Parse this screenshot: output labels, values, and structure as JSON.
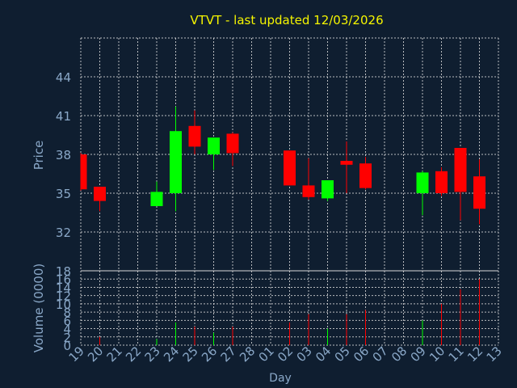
{
  "chart_data": [
    {
      "type": "candlestick",
      "title": "VTVT - last updated 12/03/2026",
      "xlabel": "",
      "ylabel": "Price",
      "ylim": [
        29,
        47
      ],
      "yticks": [
        "32",
        "35",
        "38",
        "41",
        "44"
      ],
      "colors": {
        "up": "#00ff00",
        "down": "#ff0000",
        "background": "#0f1e30",
        "text": "#8aa8c8",
        "title": "#f5f500",
        "grid": "#d8d8d8"
      },
      "candles": [
        {
          "day": "19",
          "open": 38.0,
          "close": 35.3,
          "high": 38.1,
          "low": 35.2
        },
        {
          "day": "20",
          "open": 35.5,
          "close": 34.4,
          "high": 35.5,
          "low": 33.6
        },
        {
          "day": "23",
          "open": 34.0,
          "close": 35.1,
          "high": 35.9,
          "low": 34.0
        },
        {
          "day": "24",
          "open": 35.0,
          "close": 39.8,
          "high": 41.7,
          "low": 33.6
        },
        {
          "day": "25",
          "open": 40.2,
          "close": 38.6,
          "high": 41.4,
          "low": 38.0
        },
        {
          "day": "26",
          "open": 38.0,
          "close": 39.3,
          "high": 39.3,
          "low": 36.8
        },
        {
          "day": "27",
          "open": 39.6,
          "close": 38.1,
          "high": 39.7,
          "low": 37.1
        },
        {
          "day": "02",
          "open": 38.3,
          "close": 35.6,
          "high": 38.3,
          "low": 35.6
        },
        {
          "day": "03",
          "open": 35.6,
          "close": 34.7,
          "high": 37.7,
          "low": 34.5
        },
        {
          "day": "04",
          "open": 34.6,
          "close": 36.0,
          "high": 36.0,
          "low": 34.4
        },
        {
          "day": "05",
          "open": 37.5,
          "close": 37.2,
          "high": 39.0,
          "low": 35.0
        },
        {
          "day": "06",
          "open": 37.3,
          "close": 35.4,
          "high": 37.8,
          "low": 35.3
        },
        {
          "day": "09",
          "open": 35.0,
          "close": 36.6,
          "high": 36.7,
          "low": 33.3
        },
        {
          "day": "10",
          "open": 36.7,
          "close": 35.0,
          "high": 37.0,
          "low": 34.8
        },
        {
          "day": "11",
          "open": 38.5,
          "close": 35.1,
          "high": 38.5,
          "low": 32.9
        },
        {
          "day": "12",
          "open": 36.3,
          "close": 33.8,
          "high": 37.6,
          "low": 32.6
        }
      ]
    },
    {
      "type": "bar",
      "title": "",
      "xlabel": "Day",
      "ylabel": "Volume (0000)",
      "ylim": [
        0,
        18
      ],
      "yticks": [
        "0",
        "2",
        "4",
        "6",
        "8",
        "10",
        "12",
        "14",
        "16",
        "18"
      ],
      "categories": [
        "19",
        "20",
        "21",
        "22",
        "23",
        "24",
        "25",
        "26",
        "27",
        "28",
        "01",
        "02",
        "03",
        "04",
        "05",
        "06",
        "07",
        "08",
        "09",
        "10",
        "11",
        "12",
        "13"
      ],
      "bars": [
        {
          "day": "20",
          "value": 2.0,
          "direction": "down"
        },
        {
          "day": "23",
          "value": 1.5,
          "direction": "up"
        },
        {
          "day": "24",
          "value": 5.5,
          "direction": "up"
        },
        {
          "day": "25",
          "value": 4.5,
          "direction": "down"
        },
        {
          "day": "26",
          "value": 3.0,
          "direction": "up"
        },
        {
          "day": "27",
          "value": 4.5,
          "direction": "down"
        },
        {
          "day": "02",
          "value": 5.5,
          "direction": "down"
        },
        {
          "day": "03",
          "value": 7.5,
          "direction": "down"
        },
        {
          "day": "04",
          "value": 4.0,
          "direction": "up"
        },
        {
          "day": "05",
          "value": 7.5,
          "direction": "down"
        },
        {
          "day": "06",
          "value": 8.5,
          "direction": "down"
        },
        {
          "day": "09",
          "value": 6.0,
          "direction": "up"
        },
        {
          "day": "10",
          "value": 10.0,
          "direction": "down"
        },
        {
          "day": "11",
          "value": 13.5,
          "direction": "down"
        },
        {
          "day": "12",
          "value": 16.0,
          "direction": "down"
        }
      ]
    }
  ]
}
